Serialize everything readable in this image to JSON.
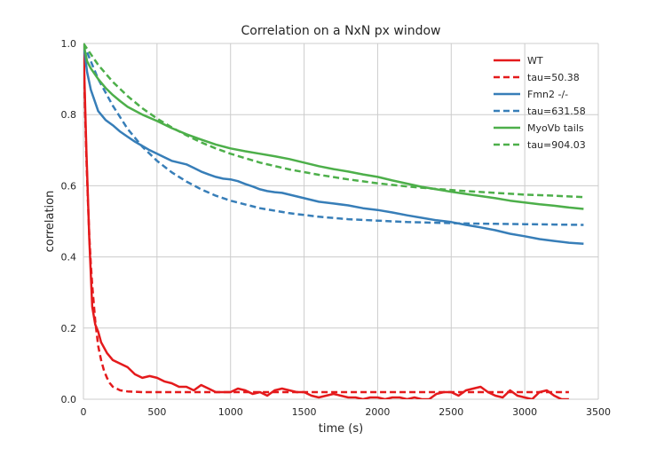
{
  "chart_data": {
    "type": "line",
    "title": "Correlation on a NxN px window",
    "xlabel": "time (s)",
    "ylabel": "correlation",
    "xlim": [
      0,
      3500
    ],
    "ylim": [
      0,
      1.0
    ],
    "x_ticks": [
      "0",
      "500",
      "1000",
      "1500",
      "2000",
      "2500",
      "3000",
      "3500"
    ],
    "y_ticks": [
      "0.0",
      "0.2",
      "0.4",
      "0.6",
      "0.8",
      "1.0"
    ],
    "grid": true,
    "background": "#ffffff",
    "grid_color": "#cccccc",
    "legend_position": "top-right",
    "series": [
      {
        "name": "WT",
        "color": "#e41a1c",
        "style": "solid",
        "x": [
          0,
          20,
          40,
          60,
          80,
          100,
          120,
          160,
          200,
          250,
          300,
          350,
          400,
          450,
          500,
          550,
          600,
          650,
          700,
          750,
          800,
          850,
          900,
          950,
          1000,
          1050,
          1100,
          1150,
          1200,
          1250,
          1300,
          1350,
          1400,
          1450,
          1500,
          1550,
          1600,
          1650,
          1700,
          1750,
          1800,
          1850,
          1900,
          1950,
          2000,
          2050,
          2100,
          2150,
          2200,
          2250,
          2300,
          2350,
          2400,
          2450,
          2500,
          2550,
          2600,
          2650,
          2700,
          2750,
          2800,
          2850,
          2900,
          2950,
          3000,
          3050,
          3100,
          3150,
          3200,
          3250,
          3300
        ],
        "values": [
          1.0,
          0.7,
          0.45,
          0.26,
          0.21,
          0.19,
          0.16,
          0.13,
          0.11,
          0.1,
          0.09,
          0.07,
          0.06,
          0.065,
          0.06,
          0.05,
          0.045,
          0.035,
          0.035,
          0.025,
          0.04,
          0.03,
          0.02,
          0.02,
          0.02,
          0.03,
          0.025,
          0.015,
          0.02,
          0.01,
          0.025,
          0.03,
          0.025,
          0.02,
          0.02,
          0.01,
          0.005,
          0.01,
          0.015,
          0.01,
          0.005,
          0.005,
          0.0,
          0.005,
          0.005,
          0.0,
          0.005,
          0.005,
          0.0,
          0.005,
          0.0,
          0.0,
          0.015,
          0.02,
          0.02,
          0.01,
          0.025,
          0.03,
          0.035,
          0.02,
          0.01,
          0.005,
          0.025,
          0.01,
          0.005,
          0.0,
          0.02,
          0.025,
          0.01,
          0.0,
          0.0
        ]
      },
      {
        "name": "tau=50.38",
        "color": "#e41a1c",
        "style": "dashed",
        "x": [
          0,
          10,
          20,
          30,
          40,
          50,
          60,
          80,
          100,
          120,
          140,
          160,
          180,
          200,
          250,
          300,
          400,
          600,
          1000,
          2000,
          3000,
          3300
        ],
        "values": [
          1.0,
          0.82,
          0.68,
          0.56,
          0.46,
          0.38,
          0.32,
          0.22,
          0.15,
          0.11,
          0.08,
          0.06,
          0.045,
          0.035,
          0.025,
          0.022,
          0.02,
          0.02,
          0.02,
          0.02,
          0.02,
          0.02
        ]
      },
      {
        "name": "Fmn2 -/-",
        "color": "#377eb8",
        "style": "solid",
        "x": [
          0,
          25,
          50,
          100,
          150,
          200,
          250,
          300,
          350,
          400,
          450,
          500,
          550,
          600,
          650,
          700,
          750,
          800,
          850,
          900,
          950,
          1000,
          1050,
          1100,
          1150,
          1200,
          1250,
          1300,
          1350,
          1400,
          1450,
          1500,
          1600,
          1700,
          1800,
          1900,
          2000,
          2100,
          2200,
          2300,
          2400,
          2500,
          2600,
          2700,
          2800,
          2900,
          3000,
          3100,
          3200,
          3300,
          3400
        ],
        "values": [
          1.0,
          0.92,
          0.87,
          0.81,
          0.785,
          0.77,
          0.752,
          0.738,
          0.724,
          0.712,
          0.7,
          0.69,
          0.68,
          0.67,
          0.665,
          0.66,
          0.65,
          0.64,
          0.632,
          0.625,
          0.62,
          0.618,
          0.613,
          0.605,
          0.598,
          0.59,
          0.585,
          0.582,
          0.58,
          0.575,
          0.57,
          0.565,
          0.555,
          0.55,
          0.545,
          0.537,
          0.532,
          0.525,
          0.517,
          0.51,
          0.503,
          0.498,
          0.49,
          0.483,
          0.475,
          0.465,
          0.458,
          0.45,
          0.445,
          0.44,
          0.437
        ]
      },
      {
        "name": "tau=631.58",
        "color": "#377eb8",
        "style": "dashed",
        "x": [
          0,
          100,
          200,
          300,
          400,
          500,
          600,
          700,
          800,
          900,
          1000,
          1200,
          1400,
          1600,
          1800,
          2000,
          2200,
          2400,
          2600,
          2800,
          3000,
          3200,
          3400
        ],
        "values": [
          1.0,
          0.9,
          0.825,
          0.76,
          0.71,
          0.67,
          0.638,
          0.612,
          0.59,
          0.572,
          0.558,
          0.537,
          0.523,
          0.513,
          0.506,
          0.502,
          0.498,
          0.496,
          0.494,
          0.493,
          0.492,
          0.491,
          0.49
        ]
      },
      {
        "name": "MyoVb tails",
        "color": "#4daf4a",
        "style": "solid",
        "x": [
          0,
          25,
          50,
          100,
          150,
          200,
          250,
          300,
          400,
          500,
          600,
          700,
          800,
          900,
          1000,
          1100,
          1200,
          1300,
          1400,
          1500,
          1600,
          1700,
          1800,
          1900,
          2000,
          2100,
          2200,
          2300,
          2400,
          2500,
          2600,
          2700,
          2800,
          2900,
          3000,
          3100,
          3200,
          3300,
          3400
        ],
        "values": [
          1.0,
          0.95,
          0.93,
          0.9,
          0.875,
          0.855,
          0.838,
          0.822,
          0.8,
          0.782,
          0.762,
          0.745,
          0.73,
          0.716,
          0.705,
          0.697,
          0.69,
          0.683,
          0.675,
          0.665,
          0.655,
          0.647,
          0.64,
          0.632,
          0.625,
          0.615,
          0.606,
          0.597,
          0.59,
          0.583,
          0.577,
          0.571,
          0.565,
          0.558,
          0.553,
          0.548,
          0.544,
          0.539,
          0.535
        ]
      },
      {
        "name": "tau=904.03",
        "color": "#4daf4a",
        "style": "dashed",
        "x": [
          0,
          100,
          200,
          300,
          400,
          500,
          600,
          700,
          800,
          900,
          1000,
          1200,
          1400,
          1600,
          1800,
          2000,
          2200,
          2400,
          2600,
          2800,
          3000,
          3200,
          3400
        ],
        "values": [
          1.0,
          0.94,
          0.892,
          0.852,
          0.818,
          0.789,
          0.764,
          0.742,
          0.722,
          0.705,
          0.69,
          0.665,
          0.646,
          0.631,
          0.618,
          0.607,
          0.598,
          0.591,
          0.585,
          0.58,
          0.575,
          0.572,
          0.568
        ]
      }
    ]
  }
}
